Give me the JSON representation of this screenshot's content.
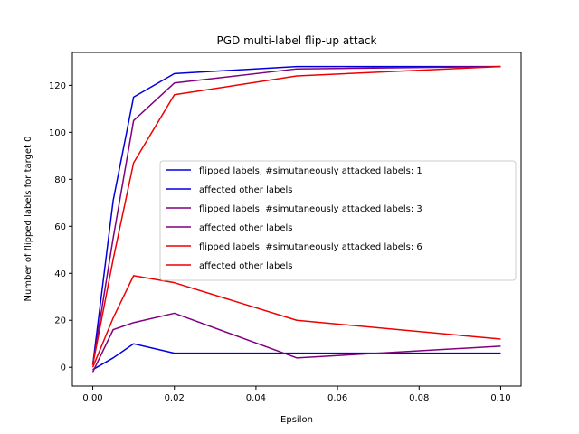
{
  "chart_data": {
    "type": "line",
    "title": "PGD multi-label flip-up attack",
    "xlabel": "Epsilon",
    "ylabel": "Number of flipped labels for target 0",
    "xlim": [
      -0.005,
      0.105
    ],
    "ylim": [
      -8,
      134
    ],
    "xticks": [
      0.0,
      0.02,
      0.04,
      0.06,
      0.08,
      0.1
    ],
    "xtick_labels": [
      "0.00",
      "0.02",
      "0.04",
      "0.06",
      "0.08",
      "0.10"
    ],
    "yticks": [
      0,
      20,
      40,
      60,
      80,
      100,
      120
    ],
    "ytick_labels": [
      "0",
      "20",
      "40",
      "60",
      "80",
      "100",
      "120"
    ],
    "grid": false,
    "legend_position": "center-right",
    "series": [
      {
        "name": "flipped labels, #simutaneously attacked labels: 1",
        "color": "#0000dd",
        "x": [
          0.0,
          0.005,
          0.01,
          0.02,
          0.05,
          0.1
        ],
        "y": [
          1,
          71,
          115,
          125,
          128,
          128
        ]
      },
      {
        "name": "affected other labels",
        "color": "#0000dd",
        "x": [
          0.0,
          0.005,
          0.01,
          0.02,
          0.05,
          0.1
        ],
        "y": [
          -1,
          4,
          10,
          6,
          6,
          6
        ]
      },
      {
        "name": "flipped labels, #simutaneously attacked labels: 3",
        "color": "#800080",
        "x": [
          0.0,
          0.005,
          0.01,
          0.02,
          0.05,
          0.1
        ],
        "y": [
          1,
          55,
          105,
          121,
          127,
          128
        ]
      },
      {
        "name": "affected other labels",
        "color": "#800080",
        "x": [
          0.0,
          0.005,
          0.01,
          0.02,
          0.05,
          0.1
        ],
        "y": [
          -2,
          16,
          19,
          23,
          4,
          9
        ]
      },
      {
        "name": "flipped labels, #simutaneously attacked labels: 6",
        "color": "#ee0000",
        "x": [
          0.0,
          0.005,
          0.01,
          0.02,
          0.05,
          0.1
        ],
        "y": [
          1,
          46,
          87,
          116,
          124,
          128
        ]
      },
      {
        "name": "affected other labels",
        "color": "#ee0000",
        "x": [
          0.0,
          0.005,
          0.01,
          0.02,
          0.05,
          0.1
        ],
        "y": [
          0,
          21,
          39,
          36,
          20,
          12
        ]
      }
    ]
  }
}
